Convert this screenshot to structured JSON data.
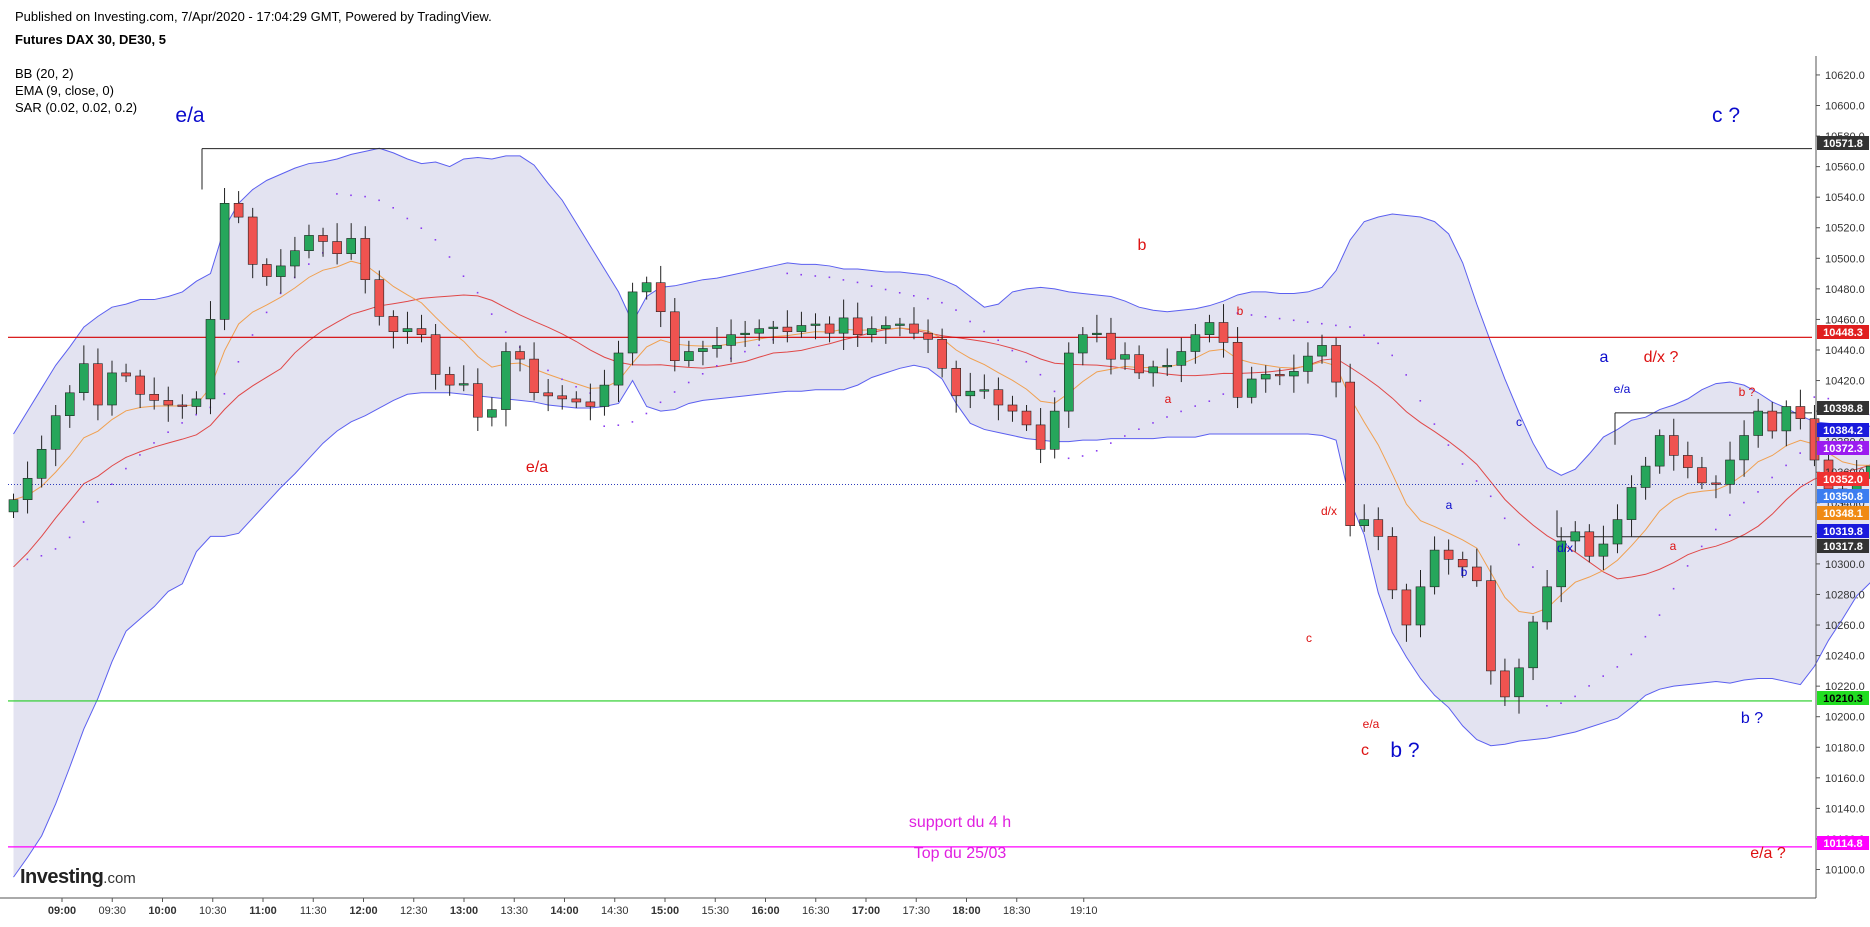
{
  "header": {
    "published": "Published on Investing.com, 7/Apr/2020 - 17:04:29 GMT, Powered by TradingView.",
    "symbol": "Futures DAX 30, DE30, 5",
    "indicators": [
      "BB (20, 2)",
      "EMA (9, close, 0)",
      "SAR (0.02, 0.02, 0.2)"
    ]
  },
  "logo": {
    "brand": "Investing",
    "suffix": ".com"
  },
  "colors": {
    "up": "#26a65b",
    "down": "#ef5350",
    "bb_fill": "#e3e3f1",
    "bb_line": "#5b5ff0",
    "ema": "#f0a050",
    "basis": "#e04848",
    "sar": "#8a3cf0",
    "red_line": "#d40000",
    "green_line": "#22cc22",
    "magenta_line": "#ff00ff",
    "blue_label": "#0a0acc",
    "red_label": "#dd1111"
  },
  "chart_data": {
    "type": "candlestick",
    "ylim": [
      10082,
      10632
    ],
    "y_ticks": [
      "10620.0",
      "10600.0",
      "10580.0",
      "10560.0",
      "10540.0",
      "10520.0",
      "10500.0",
      "10480.0",
      "10460.0",
      "10440.0",
      "10420.0",
      "10400.0",
      "10380.0",
      "10360.0",
      "10340.0",
      "10320.0",
      "10300.0",
      "10280.0",
      "10260.0",
      "10240.0",
      "10220.0",
      "10200.0",
      "10180.0",
      "10160.0",
      "10140.0",
      "10120.0",
      "10100.0"
    ],
    "x_ticks": [
      "09:00",
      "09:30",
      "10:00",
      "10:30",
      "11:00",
      "11:30",
      "12:00",
      "12:30",
      "13:00",
      "13:30",
      "14:00",
      "14:30",
      "15:00",
      "15:30",
      "16:00",
      "16:30",
      "17:00",
      "17:30",
      "18:00",
      "18:30",
      "19:10"
    ],
    "x_ticks_bold": [
      "09:00",
      "10:00",
      "11:00",
      "12:00",
      "13:00",
      "14:00",
      "15:00",
      "16:00",
      "17:00",
      "18:00"
    ],
    "closes": [
      10342,
      10356,
      10375,
      10397,
      10412,
      10431,
      10404,
      10425,
      10423,
      10411,
      10407,
      10404,
      10403,
      10408,
      10460,
      10536,
      10527,
      10496,
      10488,
      10495,
      10505,
      10515,
      10511,
      10503,
      10513,
      10486,
      10462,
      10452,
      10454,
      10450,
      10424,
      10417,
      10418,
      10396,
      10401,
      10439,
      10434,
      10412,
      10410,
      10408,
      10406,
      10403,
      10417,
      10438,
      10478,
      10484,
      10465,
      10433,
      10439,
      10441,
      10443,
      10450,
      10451,
      10454,
      10455,
      10452,
      10456,
      10457,
      10451,
      10461,
      10450,
      10454,
      10456,
      10457,
      10451,
      10447,
      10428,
      10410,
      10413,
      10414,
      10404,
      10400,
      10391,
      10375,
      10400,
      10438,
      10450,
      10451,
      10434,
      10437,
      10425,
      10429,
      10430,
      10439,
      10450,
      10458,
      10445,
      10409,
      10421,
      10424,
      10423,
      10426,
      10436,
      10443,
      10419,
      10325,
      10329,
      10318,
      10283,
      10260,
      10285,
      10309,
      10303,
      10298,
      10289,
      10230,
      10213,
      10232,
      10262,
      10285,
      10315,
      10321,
      10305,
      10313,
      10329,
      10350,
      10364,
      10384,
      10371,
      10363,
      10353,
      10352,
      10368,
      10384,
      10400,
      10387,
      10403,
      10395,
      10368,
      10349,
      10344,
      10356,
      10364,
      10370,
      10343,
      10358,
      10350,
      10352
    ],
    "bb_upper": [
      10385,
      10400,
      10415,
      10430,
      10442,
      10455,
      10462,
      10468,
      10470,
      10473,
      10473,
      10475,
      10478,
      10485,
      10490,
      10520,
      10536,
      10545,
      10551,
      10555,
      10559,
      10562,
      10563,
      10565,
      10568,
      10570,
      10572,
      10569,
      10565,
      10562,
      10563,
      10560,
      10565,
      10566,
      10565,
      10567,
      10567,
      10561,
      10549,
      10538,
      10523,
      10508,
      10493,
      10478,
      10458,
      10475,
      10481,
      10482,
      10484,
      10486,
      10487,
      10489,
      10491,
      10493,
      10495,
      10497,
      10496,
      10496,
      10495,
      10493,
      10493,
      10492,
      10491,
      10491,
      10490,
      10489,
      10486,
      10482,
      10475,
      10468,
      10470,
      10478,
      10480,
      10481,
      10480,
      10478,
      10477,
      10476,
      10475,
      10472,
      10468,
      10466,
      10465,
      10466,
      10467,
      10469,
      10472,
      10476,
      10478,
      10478,
      10477,
      10477,
      10478,
      10481,
      10492,
      10512,
      10524,
      10527,
      10529,
      10528,
      10527,
      10524,
      10516,
      10497,
      10470,
      10445,
      10421,
      10399,
      10379,
      10363,
      10358,
      10362,
      10372,
      10383,
      10388,
      10394,
      10396,
      10401,
      10404,
      10408,
      10414,
      10418,
      10419,
      10417,
      10412,
      10406,
      10402,
      10397,
      10393,
      10392,
      10391,
      10391,
      10390,
      10389,
      10389,
      10388,
      10387,
      10386
    ],
    "bb_lower": [
      10095,
      10108,
      10122,
      10143,
      10167,
      10192,
      10212,
      10236,
      10256,
      10264,
      10272,
      10282,
      10287,
      10308,
      10318,
      10318,
      10320,
      10330,
      10340,
      10350,
      10359,
      10369,
      10379,
      10387,
      10393,
      10397,
      10402,
      10407,
      10411,
      10412,
      10412,
      10412,
      10411,
      10410,
      10409,
      10408,
      10407,
      10406,
      10404,
      10403,
      10402,
      10402,
      10403,
      10405,
      10420,
      10403,
      10400,
      10401,
      10405,
      10407,
      10408,
      10409,
      10410,
      10411,
      10412,
      10413,
      10413,
      10414,
      10414,
      10414,
      10417,
      10422,
      10425,
      10428,
      10430,
      10428,
      10421,
      10405,
      10392,
      10388,
      10386,
      10384,
      10382,
      10381,
      10380,
      10380,
      10381,
      10381,
      10382,
      10382,
      10382,
      10382,
      10383,
      10383,
      10383,
      10385,
      10385,
      10385,
      10385,
      10385,
      10385,
      10385,
      10385,
      10384,
      10381,
      10341,
      10319,
      10281,
      10255,
      10239,
      10225,
      10214,
      10206,
      10194,
      10185,
      10181,
      10182,
      10184,
      10185,
      10186,
      10188,
      10190,
      10193,
      10196,
      10199,
      10206,
      10214,
      10218,
      10220,
      10221,
      10222,
      10223,
      10222,
      10224,
      10225,
      10225,
      10223,
      10221,
      10233,
      10250,
      10264,
      10279,
      10288,
      10294,
      10296,
      10302,
      10312,
      10320
    ],
    "annotations": [
      {
        "text": "e/a",
        "color": "blue",
        "size": "large"
      },
      {
        "text": "c ?",
        "color": "blue",
        "size": "large"
      },
      {
        "text": "e/a",
        "color": "red",
        "size": "medium"
      },
      {
        "text": "b",
        "color": "red",
        "size": "medium"
      },
      {
        "text": "a",
        "color": "red",
        "size": "small"
      },
      {
        "text": "b",
        "color": "red",
        "size": "small"
      },
      {
        "text": "d/x",
        "color": "red",
        "size": "small"
      },
      {
        "text": "c",
        "color": "red",
        "size": "small"
      },
      {
        "text": "e/a",
        "color": "red",
        "size": "small"
      },
      {
        "text": "c",
        "color": "red",
        "size": "medium"
      },
      {
        "text": "b ?",
        "color": "blue",
        "size": "large"
      },
      {
        "text": "a",
        "color": "blue",
        "size": "small"
      },
      {
        "text": "b",
        "color": "blue",
        "size": "small"
      },
      {
        "text": "c",
        "color": "blue",
        "size": "small"
      },
      {
        "text": "d/x",
        "color": "blue",
        "size": "small"
      },
      {
        "text": "e/a",
        "color": "blue",
        "size": "small"
      },
      {
        "text": "a",
        "color": "blue",
        "size": "medium"
      },
      {
        "text": "d/x ?",
        "color": "red",
        "size": "medium"
      },
      {
        "text": "b ?",
        "color": "red",
        "size": "small"
      },
      {
        "text": "a",
        "color": "red",
        "size": "small"
      },
      {
        "text": "b ?",
        "color": "blue",
        "size": "medium"
      },
      {
        "text": "support du 4 h",
        "color": "magenta",
        "size": "medium"
      },
      {
        "text": "Top du 25/03",
        "color": "magenta",
        "size": "medium"
      },
      {
        "text": "e/a ?",
        "color": "red",
        "size": "medium"
      }
    ],
    "price_labels": [
      {
        "text": "10571.8",
        "bg": "#333333",
        "fg": "#ffffff",
        "value": 10571.8
      },
      {
        "text": "10448.3",
        "bg": "#e01e1e",
        "fg": "#ffffff",
        "value": 10448.3
      },
      {
        "text": "10398.8",
        "bg": "#333333",
        "fg": "#ffffff",
        "value": 10398.8
      },
      {
        "text": "10384.2",
        "bg": "#1a1adc",
        "fg": "#ffffff",
        "value": 10384.2
      },
      {
        "text": "10372.3",
        "bg": "#9b1cf0",
        "fg": "#ffffff",
        "value": 10372.3
      },
      {
        "text": "10352.0",
        "bg": "#ef3030",
        "fg": "#ffffff",
        "value": 10352.0
      },
      {
        "text": "10350.8",
        "bg": "#3c7df0",
        "fg": "#ffffff",
        "value": 10350.8
      },
      {
        "text": "10348.1",
        "bg": "#f08a14",
        "fg": "#ffffff",
        "value": 10348.1
      },
      {
        "text": "10319.8",
        "bg": "#1a1adc",
        "fg": "#ffffff",
        "value": 10319.8
      },
      {
        "text": "10317.8",
        "bg": "#333333",
        "fg": "#ffffff",
        "value": 10317.8
      },
      {
        "text": "10210.3",
        "bg": "#22dd22",
        "fg": "#000000",
        "value": 10210.3
      },
      {
        "text": "10114.8",
        "bg": "#ff00ff",
        "fg": "#ffffff",
        "value": 10114.8
      }
    ],
    "hlines": [
      {
        "name": "resistance-line",
        "value": 10448.3,
        "color": "red"
      },
      {
        "name": "support-line",
        "value": 10210.3,
        "color": "green"
      },
      {
        "name": "top-line",
        "value": 10114.8,
        "color": "magenta"
      },
      {
        "name": "last-price-line",
        "value": 10352.0,
        "color": "blue-dotted"
      }
    ]
  }
}
